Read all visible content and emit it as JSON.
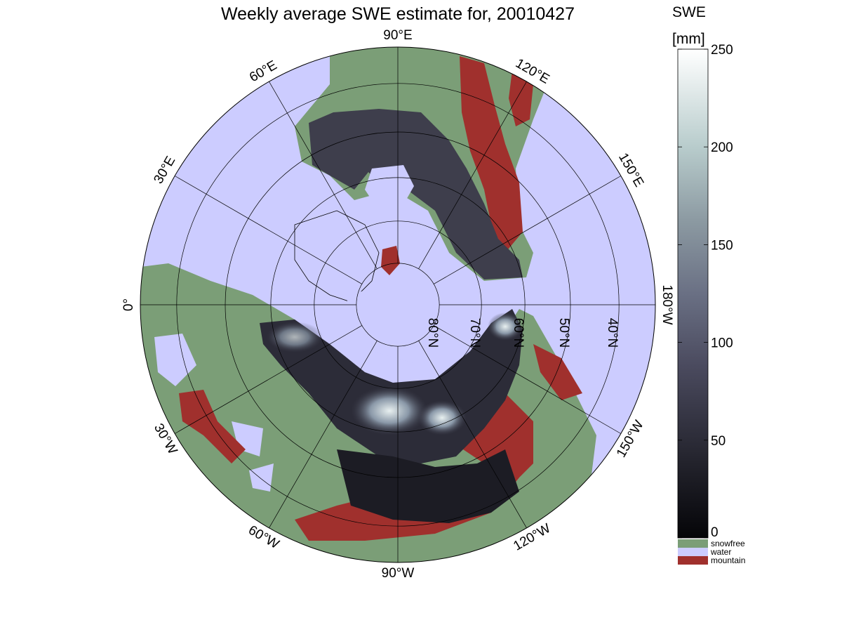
{
  "title": "Weekly average SWE estimate for, 20010427",
  "map": {
    "projection": "north-polar-stereographic",
    "lon_labels": [
      {
        "text": "90°W",
        "lon": -90
      },
      {
        "text": "120°W",
        "lon": -120
      },
      {
        "text": "150°W",
        "lon": -150
      },
      {
        "text": "180°W",
        "lon": 180
      },
      {
        "text": "150°E",
        "lon": 150
      },
      {
        "text": "120°E",
        "lon": 120
      },
      {
        "text": "90°E",
        "lon": 90
      },
      {
        "text": "60°E",
        "lon": 60
      },
      {
        "text": "30°E",
        "lon": 30
      },
      {
        "text": "0°",
        "lon": 0
      },
      {
        "text": "30°W",
        "lon": -30
      },
      {
        "text": "60°W",
        "lon": -60
      }
    ],
    "lat_labels": [
      {
        "text": "80°N",
        "lat": 80
      },
      {
        "text": "70°N",
        "lat": 70
      },
      {
        "text": "60°N",
        "lat": 60
      },
      {
        "text": "50°N",
        "lat": 50
      },
      {
        "text": "40°N",
        "lat": 40
      }
    ]
  },
  "colorbar": {
    "title_line1": "SWE",
    "title_line2": "[mm]",
    "ticks": [
      "0",
      "50",
      "100",
      "150",
      "200",
      "250"
    ],
    "range": [
      0,
      250
    ],
    "legend": [
      {
        "label": "snowfree",
        "color": "#7b9e77"
      },
      {
        "label": "water",
        "color": "#ccccff"
      },
      {
        "label": "mountain",
        "color": "#a0302d"
      }
    ]
  },
  "colors": {
    "water": "#ccccff",
    "snowfree": "#7b9e77",
    "mountain": "#a0302d",
    "swe_low": "#0a0a10",
    "swe_high": "#ffffff"
  }
}
